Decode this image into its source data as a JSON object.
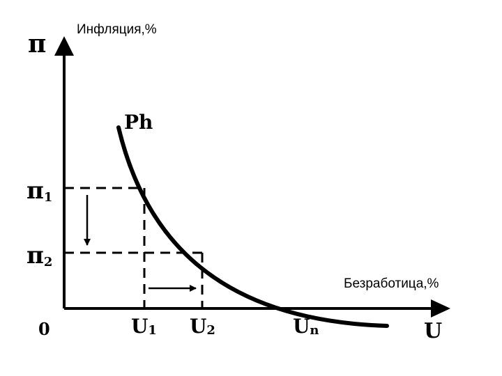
{
  "diagram": {
    "y_axis": {
      "symbol": "π",
      "label": "Инфляция,%"
    },
    "x_axis": {
      "symbol": "U",
      "label": "Безработица,%"
    },
    "curve_label": "Ph",
    "origin": "0",
    "pi_levels": [
      {
        "base": "π",
        "sub": "1"
      },
      {
        "base": "π",
        "sub": "2"
      }
    ],
    "u_levels": [
      {
        "base": "U",
        "sub": "1"
      },
      {
        "base": "U",
        "sub": "2"
      },
      {
        "base": "U",
        "sub": "n"
      }
    ],
    "colors": {
      "ink": "#000000",
      "background": "#ffffff"
    }
  }
}
